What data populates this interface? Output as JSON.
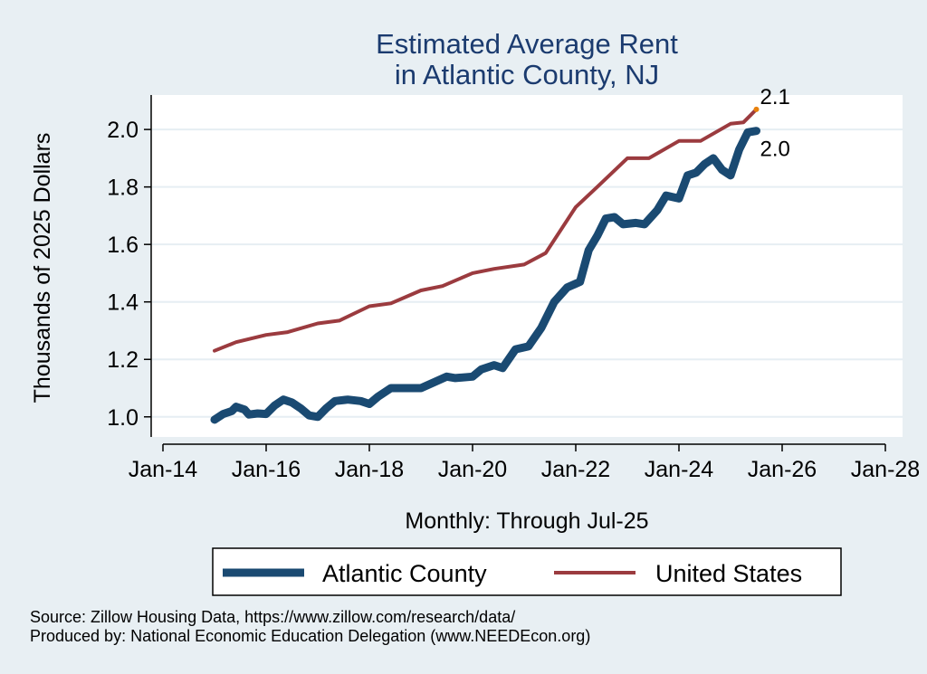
{
  "chart_data": {
    "type": "line",
    "title": [
      "Estimated Average Rent",
      "in Atlantic County, NJ"
    ],
    "xlabel": "Monthly: Through Jul-25",
    "ylabel": "Thousands of 2025 Dollars",
    "x_ticks": [
      "Jan-14",
      "Jan-16",
      "Jan-18",
      "Jan-20",
      "Jan-22",
      "Jan-24",
      "Jan-26",
      "Jan-28"
    ],
    "y_ticks": [
      "1.0",
      "1.2",
      "1.4",
      "1.6",
      "1.8",
      "2.0"
    ],
    "xlim": [
      "Jan-14",
      "Jan-28"
    ],
    "ylim": [
      0.93,
      2.12
    ],
    "grid": true,
    "legend_position": "bottom",
    "end_labels": {
      "Atlantic County": "2.0",
      "United States": "2.1"
    },
    "series": [
      {
        "name": "Atlantic County",
        "color": "#1a4a72",
        "points": [
          [
            "Jan-15",
            0.99
          ],
          [
            "Mar-15",
            1.01
          ],
          [
            "May-15",
            1.02
          ],
          [
            "Jun-15",
            1.035
          ],
          [
            "Aug-15",
            1.025
          ],
          [
            "Sep-15",
            1.008
          ],
          [
            "Nov-15",
            1.012
          ],
          [
            "Jan-16",
            1.01
          ],
          [
            "Mar-16",
            1.04
          ],
          [
            "May-16",
            1.06
          ],
          [
            "Jul-16",
            1.05
          ],
          [
            "Sep-16",
            1.03
          ],
          [
            "Nov-16",
            1.005
          ],
          [
            "Jan-17",
            1.0
          ],
          [
            "Mar-17",
            1.03
          ],
          [
            "May-17",
            1.055
          ],
          [
            "Aug-17",
            1.06
          ],
          [
            "Nov-17",
            1.055
          ],
          [
            "Jan-18",
            1.045
          ],
          [
            "Mar-18",
            1.07
          ],
          [
            "Jun-18",
            1.1
          ],
          [
            "Sep-18",
            1.1
          ],
          [
            "Jan-19",
            1.1
          ],
          [
            "Apr-19",
            1.12
          ],
          [
            "Jul-19",
            1.14
          ],
          [
            "Sep-19",
            1.135
          ],
          [
            "Jan-20",
            1.14
          ],
          [
            "Mar-20",
            1.165
          ],
          [
            "Jun-20",
            1.18
          ],
          [
            "Aug-20",
            1.17
          ],
          [
            "Nov-20",
            1.235
          ],
          [
            "Feb-21",
            1.245
          ],
          [
            "May-21",
            1.31
          ],
          [
            "Aug-21",
            1.4
          ],
          [
            "Nov-21",
            1.45
          ],
          [
            "Feb-22",
            1.47
          ],
          [
            "Apr-22",
            1.58
          ],
          [
            "Jun-22",
            1.63
          ],
          [
            "Aug-22",
            1.69
          ],
          [
            "Oct-22",
            1.695
          ],
          [
            "Dec-22",
            1.67
          ],
          [
            "Mar-23",
            1.675
          ],
          [
            "May-23",
            1.67
          ],
          [
            "Aug-23",
            1.72
          ],
          [
            "Oct-23",
            1.77
          ],
          [
            "Jan-24",
            1.76
          ],
          [
            "Mar-24",
            1.84
          ],
          [
            "May-24",
            1.85
          ],
          [
            "Jul-24",
            1.88
          ],
          [
            "Sep-24",
            1.9
          ],
          [
            "Nov-24",
            1.86
          ],
          [
            "Jan-25",
            1.84
          ],
          [
            "Mar-25",
            1.93
          ],
          [
            "May-25",
            1.99
          ],
          [
            "Jul-25",
            1.995
          ]
        ]
      },
      {
        "name": "United States",
        "color": "#9b3b3f",
        "points": [
          [
            "Jan-15",
            1.23
          ],
          [
            "Jun-15",
            1.26
          ],
          [
            "Jan-16",
            1.285
          ],
          [
            "Jun-16",
            1.295
          ],
          [
            "Jan-17",
            1.325
          ],
          [
            "Jun-17",
            1.335
          ],
          [
            "Jan-18",
            1.385
          ],
          [
            "Jun-18",
            1.395
          ],
          [
            "Jan-19",
            1.44
          ],
          [
            "Jun-19",
            1.455
          ],
          [
            "Jan-20",
            1.5
          ],
          [
            "Jun-20",
            1.515
          ],
          [
            "Jan-21",
            1.53
          ],
          [
            "Jun-21",
            1.57
          ],
          [
            "Jan-22",
            1.73
          ],
          [
            "Jun-22",
            1.8
          ],
          [
            "Jan-23",
            1.9
          ],
          [
            "Jun-23",
            1.9
          ],
          [
            "Jan-24",
            1.96
          ],
          [
            "Jun-24",
            1.96
          ],
          [
            "Jan-25",
            2.02
          ],
          [
            "Apr-25",
            2.025
          ],
          [
            "Jul-25",
            2.07
          ]
        ]
      }
    ]
  },
  "footer": {
    "source": "Source: Zillow Housing Data, https://www.zillow.com/research/data/",
    "producer": "Produced by: National Economic Education Delegation (www.NEEDEcon.org)"
  }
}
